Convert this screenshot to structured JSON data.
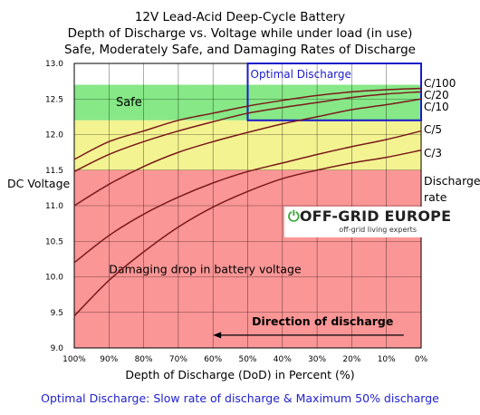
{
  "titles": [
    "12V Lead-Acid Deep-Cycle Battery",
    "Depth of Discharge vs. Voltage while under load (in use)",
    "Safe, Moderately Safe, and Damaging Rates of Discharge"
  ],
  "caption": "Optimal Discharge: Slow rate of discharge & Maximum 50% discharge",
  "logo": {
    "main_prefix": "OFF-GRID EUROPE",
    "tagline": "off-grid living experts",
    "power_icon": "power-icon"
  },
  "colors": {
    "safe": "#86e886",
    "moderate": "#f3f392",
    "damaging": "#fb9696",
    "optimal": "#1a1acc",
    "curve": "#7a1a1a",
    "text_blue": "#1f1fd0"
  },
  "chart_data": {
    "type": "line",
    "xlabel": "Depth of Discharge (DoD) in Percent (%)",
    "ylabel": "DC Voltage",
    "x_reversed": true,
    "xlim": [
      0,
      100
    ],
    "ylim": [
      9.0,
      13.0
    ],
    "x_ticks": [
      "100%",
      "90%",
      "80%",
      "70%",
      "60%",
      "50%",
      "40%",
      "30%",
      "20%",
      "10%",
      "0%"
    ],
    "x_tick_values": [
      100,
      90,
      80,
      70,
      60,
      50,
      40,
      30,
      20,
      10,
      0
    ],
    "y_ticks": [
      "9.0",
      "9.5",
      "10.0",
      "10.5",
      "11.0",
      "11.5",
      "12.0",
      "12.5",
      "13.0"
    ],
    "y_tick_values": [
      9.0,
      9.5,
      10.0,
      10.5,
      11.0,
      11.5,
      12.0,
      12.5,
      13.0
    ],
    "grid": true,
    "zones": [
      {
        "name": "Safe",
        "from": 12.2,
        "to": 12.7,
        "color": "#86e886"
      },
      {
        "name": "",
        "from": 11.5,
        "to": 12.2,
        "color": "#f3f392"
      },
      {
        "name": "Damaging drop in battery voltage",
        "from": 9.0,
        "to": 11.5,
        "color": "#fb9696"
      }
    ],
    "optimal_box": {
      "label": "Optimal Discharge",
      "x_from": 50,
      "x_to": 0,
      "y_from": 12.2,
      "y_to": 13.0
    },
    "legend_title": "Discharge rate",
    "arrow_label": "Direction of discharge",
    "arrow": {
      "from_x": 5,
      "to_x": 60,
      "y": 9.18
    },
    "x": [
      100,
      90,
      80,
      70,
      60,
      50,
      40,
      30,
      20,
      10,
      0
    ],
    "series": [
      {
        "name": "C/100",
        "values": [
          11.65,
          11.9,
          12.05,
          12.2,
          12.3,
          12.4,
          12.48,
          12.55,
          12.6,
          12.63,
          12.65
        ]
      },
      {
        "name": "C/20",
        "values": [
          11.48,
          11.72,
          11.9,
          12.05,
          12.18,
          12.3,
          12.38,
          12.45,
          12.52,
          12.57,
          12.6
        ]
      },
      {
        "name": "C/10",
        "values": [
          11.0,
          11.3,
          11.55,
          11.75,
          11.9,
          12.03,
          12.15,
          12.25,
          12.35,
          12.42,
          12.5
        ]
      },
      {
        "name": "C/5",
        "values": [
          10.2,
          10.58,
          10.88,
          11.12,
          11.32,
          11.48,
          11.6,
          11.72,
          11.83,
          11.93,
          12.05
        ]
      },
      {
        "name": "C/3",
        "values": [
          9.45,
          9.95,
          10.35,
          10.7,
          10.98,
          11.2,
          11.38,
          11.5,
          11.6,
          11.68,
          11.78
        ]
      }
    ]
  }
}
